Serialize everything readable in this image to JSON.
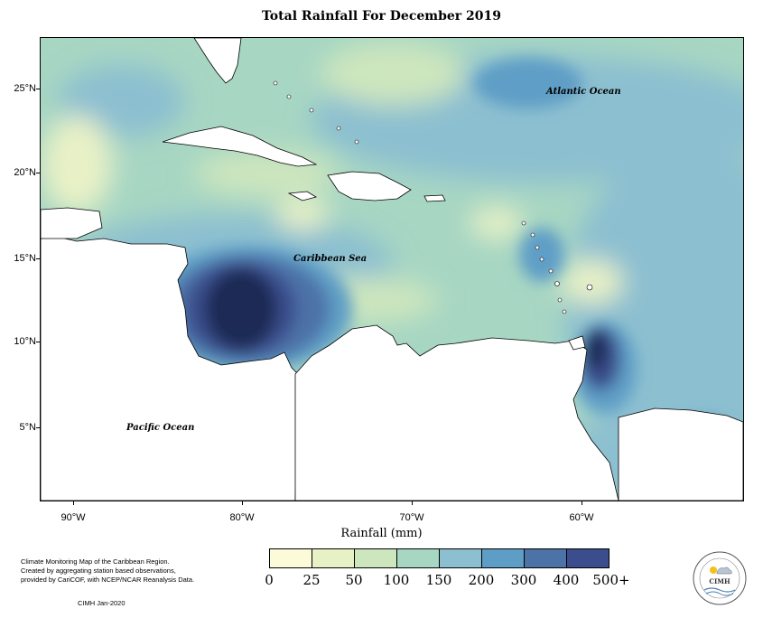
{
  "title": "Total Rainfall For December 2019",
  "x_axis_label": "Rainfall (mm)",
  "lat_ticks": [
    "25°N",
    "20°N",
    "15°N",
    "10°N",
    "5°N"
  ],
  "lon_ticks": [
    "90°W",
    "80°W",
    "70°W",
    "60°W"
  ],
  "ocean_labels": {
    "atlantic": "Atlantic Ocean",
    "caribbean": "Caribbean Sea",
    "pacific": "Pacific Ocean"
  },
  "legend": {
    "breaks": [
      "0",
      "25",
      "50",
      "100",
      "150",
      "200",
      "300",
      "400",
      "500+"
    ],
    "colors": [
      "#fbfbda",
      "#e8f1c6",
      "#cde6bd",
      "#a7d6c3",
      "#8cbfd0",
      "#5e9ec6",
      "#4d72a8",
      "#3b4d8c",
      "#1d2b55"
    ]
  },
  "credit": {
    "line1": "Climate Monitoring Map of the Caribbean Region.",
    "line2": "Created by aggregating station based observations,",
    "line3": "provided by CariCOF, with NCEP/NCAR Reanalysis Data.",
    "date": "CIMH  Jan-2020"
  },
  "logo": {
    "text": "CIMH"
  }
}
